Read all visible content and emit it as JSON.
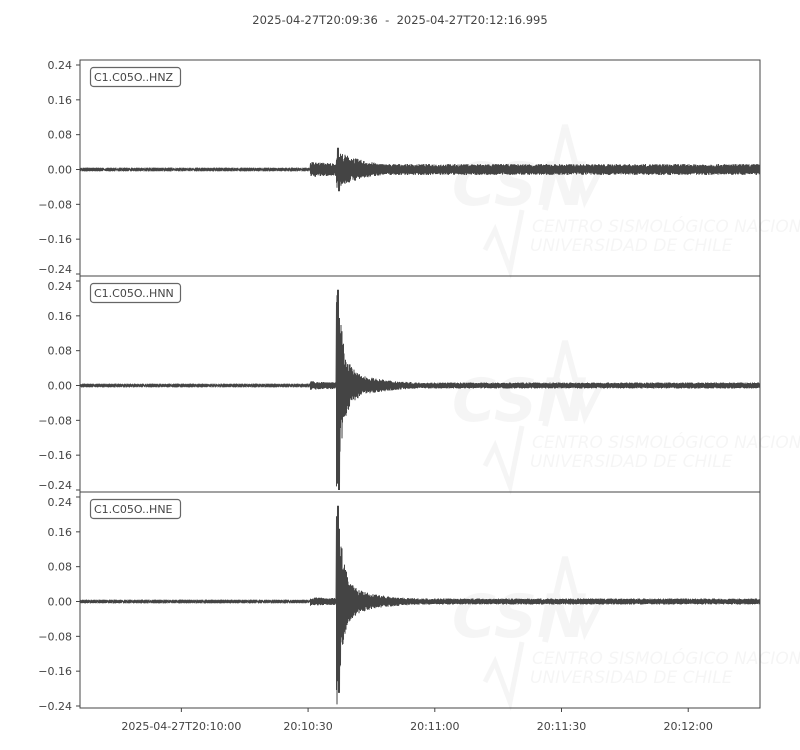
{
  "chart_data": {
    "type": "line",
    "title": "2025-04-27T20:09:36  -  2025-04-27T20:12:16.995",
    "start_time": "2025-04-27T20:09:36",
    "end_time": "2025-04-27T20:12:16.995",
    "x_ticks": [
      "2025-04-27T20:10:00",
      "20:10:30",
      "20:11:00",
      "20:11:30",
      "20:12:00"
    ],
    "x_tick_seconds": [
      24,
      54,
      84,
      114,
      144
    ],
    "y_ticks": [
      "0.24",
      "0.16",
      "0.08",
      "0.00",
      "−0.08",
      "−0.16",
      "−0.24"
    ],
    "y_tick_values": [
      0.24,
      0.16,
      0.08,
      0,
      -0.08,
      -0.16,
      -0.24
    ],
    "ylim": [
      -0.2446,
      0.2515
    ],
    "grid": false,
    "line_color": "#444444",
    "series": [
      {
        "name": "C1.C05O..HNZ",
        "p_arrival_s": 54.5,
        "s_arrival_s": 61.0,
        "peak_max": 0.05,
        "peak_min": -0.05
      },
      {
        "name": "C1.C05O..HNN",
        "p_arrival_s": 54.5,
        "s_arrival_s": 61.0,
        "peak_max": 0.22,
        "peak_min": -0.24
      },
      {
        "name": "C1.C05O..HNE",
        "p_arrival_s": 54.5,
        "s_arrival_s": 61.0,
        "peak_max": 0.22,
        "peak_min": -0.21
      }
    ],
    "watermark": {
      "logo": "CSN",
      "line1": "CENTRO SISMOLÓGICO NACIONAL",
      "line2": "UNIVERSIDAD DE CHILE"
    }
  }
}
